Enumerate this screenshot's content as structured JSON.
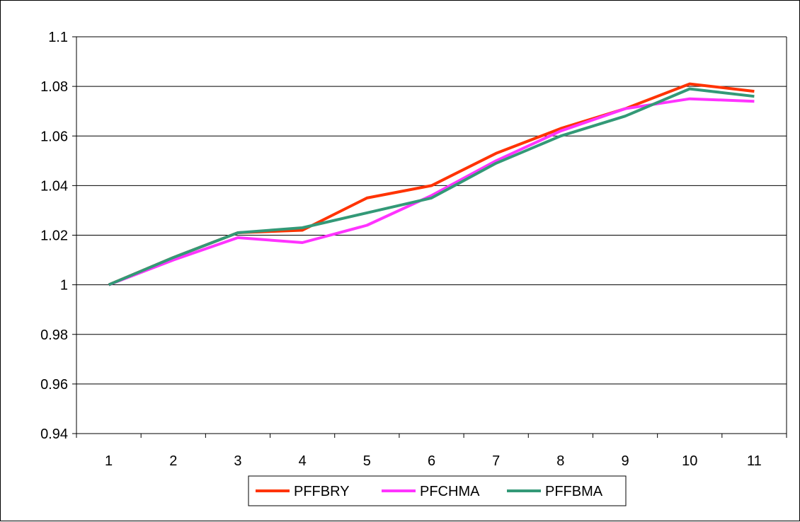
{
  "chart_data": {
    "type": "line",
    "title": "",
    "xlabel": "",
    "ylabel": "",
    "categories": [
      "1",
      "2",
      "3",
      "4",
      "5",
      "6",
      "7",
      "8",
      "9",
      "10",
      "11"
    ],
    "ylim": [
      0.94,
      1.1
    ],
    "yticks": [
      "0.94",
      "0.96",
      "0.98",
      "1",
      "1.02",
      "1.04",
      "1.06",
      "1.08",
      "1.1"
    ],
    "grid": true,
    "legend_position": "bottom",
    "series": [
      {
        "name": "PFFBRY",
        "color": "#ff3300",
        "values": [
          1.0,
          1.011,
          1.021,
          1.022,
          1.035,
          1.04,
          1.053,
          1.063,
          1.071,
          1.081,
          1.078
        ]
      },
      {
        "name": "PFCHMA",
        "color": "#ff33ff",
        "values": [
          1.0,
          1.01,
          1.019,
          1.017,
          1.024,
          1.036,
          1.05,
          1.062,
          1.071,
          1.075,
          1.074
        ]
      },
      {
        "name": "PFFBMA",
        "color": "#339977",
        "values": [
          1.0,
          1.011,
          1.021,
          1.023,
          1.029,
          1.035,
          1.049,
          1.06,
          1.068,
          1.079,
          1.076
        ]
      }
    ]
  }
}
